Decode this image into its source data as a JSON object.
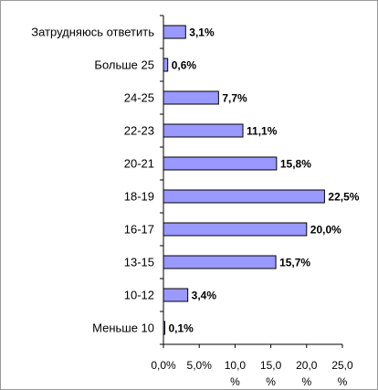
{
  "chart_data": {
    "type": "bar",
    "orientation": "horizontal",
    "categories": [
      "Затрудняюсь ответить",
      "Больше 25",
      "24-25",
      "22-23",
      "20-21",
      "18-19",
      "16-17",
      "13-15",
      "10-12",
      "Меньше 10"
    ],
    "values": [
      3.1,
      0.6,
      7.7,
      11.1,
      15.8,
      22.5,
      20.0,
      15.7,
      3.4,
      0.1
    ],
    "value_labels": [
      "3,1%",
      "0,6%",
      "7,7%",
      "11,1%",
      "15,8%",
      "22,5%",
      "20,0%",
      "15,7%",
      "3,4%",
      "0,1%"
    ],
    "xlim": [
      0,
      25
    ],
    "x_ticks": [
      {
        "value": 0,
        "label": "0,0%",
        "unit": ""
      },
      {
        "value": 5,
        "label": "5,0%",
        "unit": ""
      },
      {
        "value": 10,
        "label": "10,0",
        "unit": "%"
      },
      {
        "value": 15,
        "label": "15,0",
        "unit": "%"
      },
      {
        "value": 20,
        "label": "20,0",
        "unit": "%"
      },
      {
        "value": 25,
        "label": "25,0",
        "unit": "%"
      }
    ],
    "grid": false,
    "legend": "none",
    "title": "",
    "xlabel": "",
    "ylabel": "",
    "colors": {
      "bar_fill": "#9999ff",
      "bar_stroke": "#000000",
      "axis": "#000000"
    }
  }
}
